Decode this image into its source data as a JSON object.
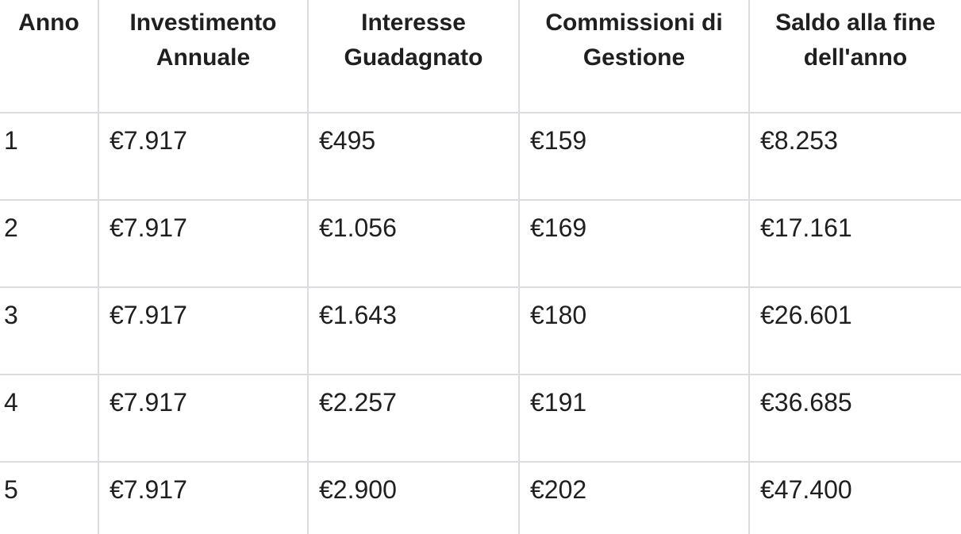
{
  "chart_data": {
    "type": "table",
    "columns": [
      "Anno",
      "Investimento Annuale",
      "Interesse Guadagnato",
      "Commissioni di Gestione",
      "Saldo alla fine dell'anno"
    ],
    "rows": [
      [
        "1",
        "€7.917",
        "€495",
        "€159",
        "€8.253"
      ],
      [
        "2",
        "€7.917",
        "€1.056",
        "€169",
        "€17.161"
      ],
      [
        "3",
        "€7.917",
        "€1.643",
        "€180",
        "€26.601"
      ],
      [
        "4",
        "€7.917",
        "€2.257",
        "€191",
        "€36.685"
      ],
      [
        "5",
        "€7.917",
        "€2.900",
        "€202",
        "€47.400"
      ]
    ],
    "currency_symbol": "€",
    "layout": {
      "grid": "on",
      "header_alignment": "center",
      "cell_alignment": "left",
      "last_row_clipped": true
    }
  },
  "colors": {
    "border": "#dadce0",
    "text": "#1f1f1f",
    "background": "#ffffff"
  }
}
